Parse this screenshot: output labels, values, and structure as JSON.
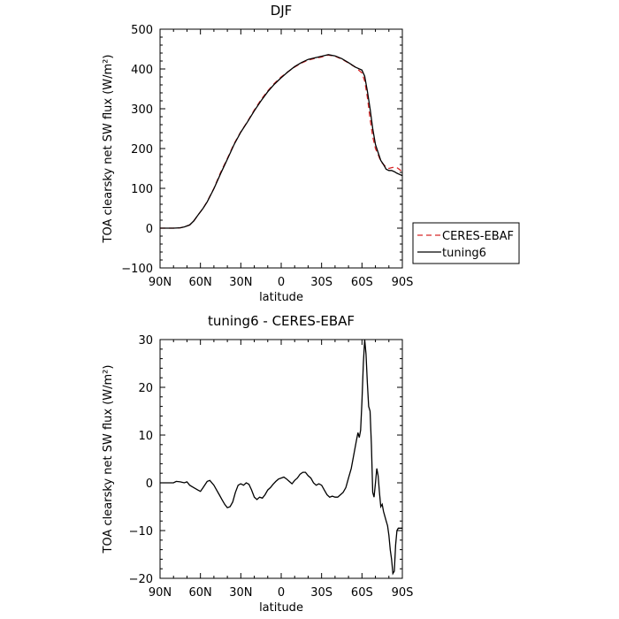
{
  "chart_data": [
    {
      "type": "line",
      "title": "DJF",
      "xlabel": "latitude",
      "ylabel": "TOA clearsky net SW flux (W/m²)",
      "xlim": [
        90,
        -90
      ],
      "ylim": [
        -100,
        500
      ],
      "x_ticks": [
        90,
        60,
        30,
        0,
        -30,
        -60,
        -90
      ],
      "x_tick_labels": [
        "90N",
        "60N",
        "30N",
        "0",
        "30S",
        "60S",
        "90S"
      ],
      "y_ticks": [
        -100,
        0,
        100,
        200,
        300,
        400,
        500
      ],
      "y_tick_labels": [
        "−100",
        "0",
        "100",
        "200",
        "300",
        "400",
        "500"
      ],
      "grid": false,
      "legend": {
        "placement": "right-outside",
        "entries": [
          {
            "label": "CERES-EBAF",
            "color": "#d62728",
            "style": "dashed"
          },
          {
            "label": "tuning6",
            "color": "#000000",
            "style": "solid"
          }
        ]
      },
      "series": [
        {
          "name": "CERES-EBAF",
          "color": "#d62728",
          "style": "dashed",
          "x": [
            90,
            85,
            80,
            75,
            72,
            68,
            65,
            62,
            58,
            55,
            50,
            45,
            40,
            35,
            30,
            25,
            20,
            15,
            10,
            5,
            0,
            -5,
            -10,
            -15,
            -20,
            -25,
            -30,
            -35,
            -40,
            -45,
            -50,
            -55,
            -60,
            -62,
            -64,
            -66,
            -68,
            -70,
            -72,
            -74,
            -76,
            -78,
            -80,
            -82,
            -84,
            -86,
            -88,
            -90
          ],
          "y": [
            0,
            0,
            0,
            1,
            3,
            8,
            18,
            32,
            50,
            67,
            100,
            140,
            175,
            212,
            242,
            268,
            297,
            323,
            345,
            364,
            380,
            393,
            405,
            415,
            422,
            427,
            430,
            435,
            432,
            425,
            415,
            405,
            390,
            370,
            330,
            275,
            230,
            200,
            185,
            168,
            160,
            153,
            150,
            152,
            153,
            152,
            147,
            140
          ]
        },
        {
          "name": "tuning6",
          "color": "#000000",
          "style": "solid",
          "x": [
            90,
            85,
            80,
            75,
            72,
            68,
            65,
            62,
            58,
            55,
            50,
            45,
            40,
            35,
            30,
            25,
            20,
            15,
            10,
            5,
            0,
            -5,
            -10,
            -15,
            -20,
            -25,
            -30,
            -35,
            -40,
            -45,
            -50,
            -55,
            -60,
            -62,
            -64,
            -66,
            -68,
            -70,
            -72,
            -74,
            -76,
            -78,
            -80,
            -82,
            -84,
            -86,
            -88,
            -90
          ],
          "y": [
            0,
            0,
            0,
            1,
            3,
            8,
            18,
            32,
            50,
            66,
            99,
            137,
            173,
            210,
            241,
            267,
            295,
            320,
            343,
            362,
            378,
            393,
            406,
            416,
            424,
            428,
            432,
            436,
            433,
            426,
            416,
            405,
            397,
            382,
            345,
            300,
            250,
            210,
            190,
            170,
            160,
            148,
            145,
            145,
            142,
            138,
            135,
            132
          ]
        }
      ]
    },
    {
      "type": "line",
      "title": "tuning6 - CERES-EBAF",
      "xlabel": "latitude",
      "ylabel": "TOA clearsky net SW flux (W/m²)",
      "xlim": [
        90,
        -90
      ],
      "ylim": [
        -20,
        30
      ],
      "x_ticks": [
        90,
        60,
        30,
        0,
        -30,
        -60,
        -90
      ],
      "x_tick_labels": [
        "90N",
        "60N",
        "30N",
        "0",
        "30S",
        "60S",
        "90S"
      ],
      "y_ticks": [
        -20,
        -10,
        0,
        10,
        20,
        30
      ],
      "y_tick_labels": [
        "−20",
        "−10",
        "0",
        "10",
        "20",
        "30"
      ],
      "grid": false,
      "series": [
        {
          "name": "",
          "color": "#000000",
          "style": "solid",
          "x": [
            90,
            85,
            80,
            78,
            75,
            72,
            70,
            68,
            65,
            62,
            60,
            58,
            55,
            53,
            50,
            48,
            46,
            44,
            42,
            40,
            38,
            36,
            34,
            32,
            30,
            28,
            26,
            24,
            22,
            20,
            18,
            16,
            14,
            12,
            10,
            8,
            6,
            4,
            2,
            0,
            -2,
            -4,
            -6,
            -8,
            -10,
            -12,
            -14,
            -16,
            -18,
            -20,
            -22,
            -24,
            -26,
            -28,
            -30,
            -32,
            -34,
            -36,
            -38,
            -40,
            -42,
            -44,
            -46,
            -48,
            -50,
            -52,
            -54,
            -56,
            -57,
            -58,
            -59,
            -60,
            -61,
            -62,
            -63,
            -64,
            -65,
            -66,
            -67,
            -68,
            -69,
            -70,
            -71,
            -72,
            -73,
            -74,
            -75,
            -76,
            -77,
            -78,
            -79,
            -80,
            -81,
            -82,
            -83,
            -84,
            -85,
            -86,
            -87,
            -88,
            -89,
            -90
          ],
          "y": [
            0,
            0,
            0,
            0.3,
            0.2,
            0,
            0.2,
            -0.5,
            -1,
            -1.5,
            -1.8,
            -1,
            0.3,
            0.5,
            -0.5,
            -1.5,
            -2.5,
            -3.5,
            -4.5,
            -5.2,
            -5,
            -4,
            -2,
            -0.5,
            -0.2,
            -0.5,
            0,
            -0.3,
            -1.5,
            -3,
            -3.5,
            -3,
            -3.2,
            -2.5,
            -1.5,
            -1,
            -0.3,
            0.3,
            0.8,
            1,
            1.2,
            0.8,
            0.3,
            -0.2,
            0.5,
            1,
            1.8,
            2.2,
            2.2,
            1.5,
            1,
            0,
            -0.5,
            -0.2,
            -0.5,
            -1.5,
            -2.5,
            -3,
            -2.8,
            -3,
            -3,
            -2.5,
            -2,
            -1,
            1,
            3,
            6,
            9,
            10.5,
            9.5,
            11,
            17,
            25,
            30,
            27,
            21,
            16,
            15,
            8,
            -2,
            -3,
            0,
            3,
            1.5,
            -2,
            -5,
            -4.5,
            -6,
            -7,
            -8,
            -9,
            -11,
            -14,
            -16,
            -19,
            -18.5,
            -13,
            -10,
            -9.5,
            -9.5,
            -9.5,
            -9.5
          ]
        }
      ]
    }
  ]
}
